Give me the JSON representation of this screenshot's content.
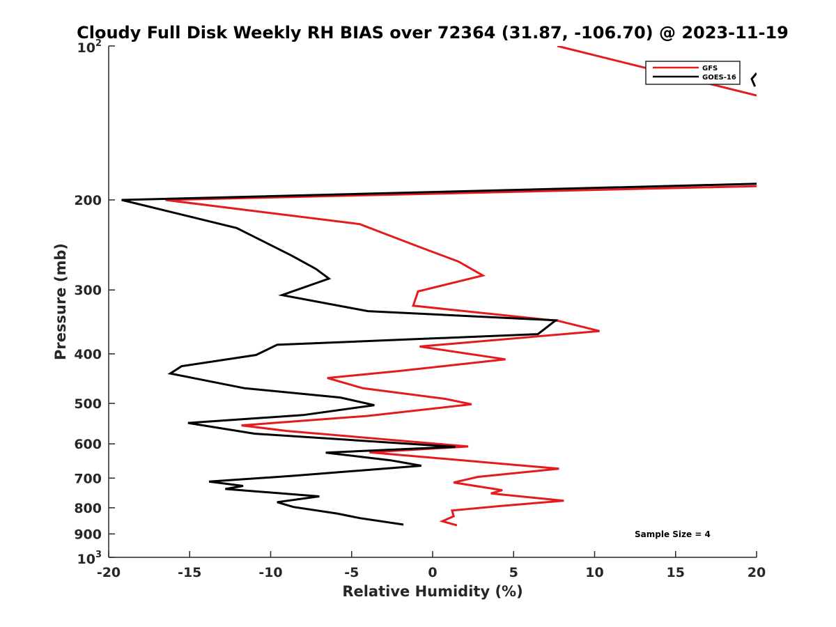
{
  "chart_data": {
    "type": "line",
    "title": "Cloudy Full Disk Weekly RH BIAS over 72364 (31.87, -106.70) @ 2023-11-19",
    "xlabel": "Relative Humidity (%)",
    "ylabel": "Pressure (mb)",
    "xlim": [
      -20,
      20
    ],
    "ylim": [
      100,
      1000
    ],
    "y_scale": "log",
    "y_reversed": true,
    "x_ticks": [
      "-20",
      "-15",
      "-10",
      "-5",
      "0",
      "5",
      "10",
      "15",
      "20"
    ],
    "y_ticks": [
      {
        "value": 100,
        "base": "10",
        "exp": "2"
      },
      {
        "value": 200,
        "label": "200"
      },
      {
        "value": 300,
        "label": "300"
      },
      {
        "value": 400,
        "label": "400"
      },
      {
        "value": 500,
        "label": "500"
      },
      {
        "value": 600,
        "label": "600"
      },
      {
        "value": 700,
        "label": "700"
      },
      {
        "value": 800,
        "label": "800"
      },
      {
        "value": 900,
        "label": "900"
      },
      {
        "value": 1000,
        "base": "10",
        "exp": "3"
      }
    ],
    "legend_position": "top-right",
    "annotation": "Sample Size = 4",
    "series": [
      {
        "name": "GFS",
        "color": "#e41a1c",
        "points": [
          [
            7.7,
            100
          ],
          [
            20,
            125
          ],
          [
            null,
            null
          ],
          [
            20,
            188
          ],
          [
            -16.5,
            200
          ],
          [
            -4.5,
            223
          ],
          [
            -1,
            246
          ],
          [
            1.6,
            264
          ],
          [
            3.1,
            281
          ],
          [
            -0.9,
            302
          ],
          [
            -1.2,
            322
          ],
          [
            7.8,
            345
          ],
          [
            10.3,
            361
          ],
          [
            -0.8,
            387
          ],
          [
            4.5,
            410
          ],
          [
            -2,
            432
          ],
          [
            -6.5,
            446
          ],
          [
            -4.3,
            467
          ],
          [
            0.8,
            490
          ],
          [
            2.4,
            502
          ],
          [
            -4,
            529
          ],
          [
            -11.8,
            552
          ],
          [
            -9,
            566
          ],
          [
            2.2,
            607
          ],
          [
            -3.9,
            623
          ],
          [
            7.8,
            671
          ],
          [
            2.8,
            696
          ],
          [
            1.3,
            714
          ],
          [
            4.3,
            739
          ],
          [
            3.6,
            750
          ],
          [
            8.1,
            775
          ],
          [
            4.1,
            794
          ],
          [
            1.2,
            810
          ],
          [
            1.3,
            831
          ],
          [
            0.6,
            850
          ],
          [
            1.5,
            866
          ]
        ]
      },
      {
        "name": "GOES-16",
        "color": "#000000",
        "points": [
          [
            20,
            113
          ],
          [
            19.7,
            116
          ],
          [
            19.9,
            120
          ],
          [
            null,
            null
          ],
          [
            20,
            186
          ],
          [
            -19.2,
            200
          ],
          [
            -12.1,
            227
          ],
          [
            -8.7,
            257
          ],
          [
            -7.2,
            273
          ],
          [
            -6.4,
            285
          ],
          [
            -9.3,
            307
          ],
          [
            -4,
            330
          ],
          [
            7.6,
            344
          ],
          [
            6.5,
            366
          ],
          [
            -9.6,
            384
          ],
          [
            -10.9,
            402
          ],
          [
            -15.5,
            423
          ],
          [
            -16.2,
            437
          ],
          [
            -11.6,
            467
          ],
          [
            -5.7,
            487
          ],
          [
            -3.6,
            504
          ],
          [
            -8,
            527
          ],
          [
            -15.1,
            546
          ],
          [
            -11,
            573
          ],
          [
            1.4,
            608
          ],
          [
            -6.6,
            624
          ],
          [
            -2.6,
            646
          ],
          [
            -0.7,
            662
          ],
          [
            -8.7,
            693
          ],
          [
            -13.8,
            711
          ],
          [
            -11.7,
            725
          ],
          [
            -12.8,
            735
          ],
          [
            -7,
            760
          ],
          [
            -9.6,
            780
          ],
          [
            -8.6,
            797
          ],
          [
            -5.9,
            821
          ],
          [
            -4.5,
            838
          ],
          [
            -1.8,
            863
          ]
        ]
      }
    ]
  }
}
